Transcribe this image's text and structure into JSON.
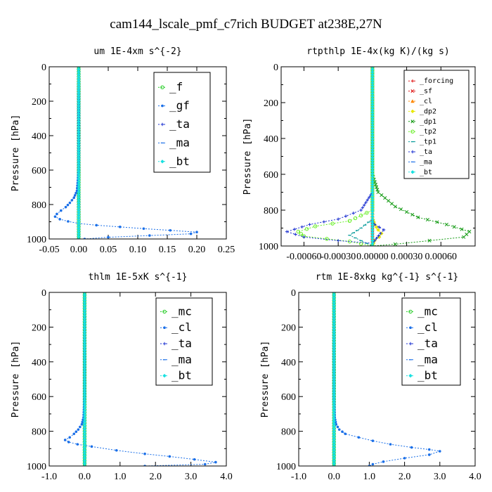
{
  "figure_title": "cam144_lscale_pmf_c7rich  BUDGET at238E,27N",
  "colors": {
    "green": "#22cc22",
    "blue": "#1a6fe8",
    "navy": "#1a2fd0",
    "cyan": "#18e0e0",
    "red": "#e01818",
    "orange": "#ff8800",
    "yellow": "#e8e800",
    "lime": "#66ee22",
    "darkgreen": "#119911",
    "teal": "#009999"
  },
  "chart_data": [
    {
      "type": "line",
      "title": "um  1E-4xm s^{-2}",
      "ylabel": "Pressure [hPa]",
      "xlabel": "",
      "xlim": [
        -0.05,
        0.25
      ],
      "ylim": [
        1000,
        0
      ],
      "xticks": [
        -0.05,
        0.0,
        0.05,
        0.1,
        0.15,
        0.2,
        0.25
      ],
      "xticklabels": [
        "-0.05",
        "0.00",
        "0.05",
        "0.10",
        "0.15",
        "0.20",
        "0.25"
      ],
      "yticks": [
        0,
        200,
        400,
        600,
        800,
        1000
      ],
      "yticklabels": [
        "0",
        "200",
        "400",
        "600",
        "800",
        "1000"
      ],
      "legend_position": "top-right",
      "legend_small": false,
      "series": [
        {
          "name": "_f",
          "color_key": "green",
          "marker": "circle",
          "points": [
            [
              0.0,
              0
            ],
            [
              0.0,
              100
            ],
            [
              0.0,
              200
            ],
            [
              0.0,
              300
            ],
            [
              0.0,
              400
            ],
            [
              0.0,
              500
            ],
            [
              0.0,
              600
            ],
            [
              0.0,
              700
            ],
            [
              0.0,
              800
            ],
            [
              0.0,
              900
            ],
            [
              0.0,
              1000
            ]
          ]
        },
        {
          "name": "_gf",
          "color_key": "blue",
          "marker": "dot",
          "points": [
            [
              0.0,
              0
            ],
            [
              0.0,
              200
            ],
            [
              0.0,
              400
            ],
            [
              0.0,
              600
            ],
            [
              -0.003,
              720
            ],
            [
              -0.008,
              760
            ],
            [
              -0.015,
              790
            ],
            [
              -0.022,
              815
            ],
            [
              -0.03,
              835
            ],
            [
              -0.037,
              855
            ],
            [
              -0.04,
              870
            ],
            [
              -0.032,
              885
            ],
            [
              -0.018,
              898
            ],
            [
              0.0,
              910
            ],
            [
              0.03,
              920
            ],
            [
              0.07,
              930
            ],
            [
              0.11,
              940
            ],
            [
              0.155,
              950
            ],
            [
              0.2,
              960
            ],
            [
              0.19,
              970
            ],
            [
              0.12,
              980
            ],
            [
              0.05,
              990
            ],
            [
              0.01,
              1000
            ]
          ]
        },
        {
          "name": "_ta",
          "color_key": "navy",
          "marker": "plus",
          "points": [
            [
              0.0,
              0
            ],
            [
              0.0,
              400
            ],
            [
              0.0,
              800
            ],
            [
              0.0,
              1000
            ]
          ]
        },
        {
          "name": "_ma",
          "color_key": "blue",
          "marker": "dash",
          "points": [
            [
              0.0,
              0
            ],
            [
              0.0,
              500
            ],
            [
              0.0,
              1000
            ]
          ]
        },
        {
          "name": "_bt",
          "color_key": "cyan",
          "marker": "diamond",
          "points": [
            [
              0.0,
              0
            ],
            [
              0.0,
              500
            ],
            [
              0.0,
              1000
            ]
          ]
        }
      ]
    },
    {
      "type": "line",
      "title": "rtpthlp  1E-4x(kg K)/(kg s)",
      "ylabel": "Pressure [hPa]",
      "xlabel": "",
      "xlim": [
        -0.0008,
        0.0009
      ],
      "ylim": [
        1000,
        0
      ],
      "xticks": [
        -0.0006,
        -0.0003,
        0.0,
        0.0003,
        0.0006
      ],
      "xticklabels": [
        "-0.00060",
        "-0.00030",
        "0.00000",
        "0.00030",
        "0.00060"
      ],
      "yticks": [
        0,
        200,
        400,
        600,
        800,
        1000
      ],
      "yticklabels": [
        "0",
        "200",
        "400",
        "600",
        "800",
        "1000"
      ],
      "legend_position": "top-right",
      "legend_small": true,
      "series": [
        {
          "name": "_forcing",
          "color_key": "red",
          "marker": "plus",
          "points": [
            [
              0.0,
              0
            ],
            [
              0.0,
              500
            ],
            [
              0.0,
              1000
            ]
          ]
        },
        {
          "name": "_sf",
          "color_key": "red",
          "marker": "cross",
          "points": [
            [
              0.0,
              0
            ],
            [
              0.0,
              500
            ],
            [
              0.0,
              1000
            ]
          ]
        },
        {
          "name": "_cl",
          "color_key": "orange",
          "marker": "triangle",
          "points": [
            [
              0.0,
              0
            ],
            [
              0.0,
              500
            ],
            [
              0.0,
              1000
            ]
          ]
        },
        {
          "name": "_dp2",
          "color_key": "yellow",
          "marker": "diamond",
          "points": [
            [
              0.0,
              0
            ],
            [
              0.0,
              840
            ],
            [
              2e-05,
              880
            ],
            [
              5e-05,
              910
            ],
            [
              8e-05,
              930
            ],
            [
              6e-05,
              950
            ],
            [
              2e-05,
              970
            ],
            [
              0.0,
              1000
            ]
          ]
        },
        {
          "name": "_dp1",
          "color_key": "darkgreen",
          "marker": "cross",
          "points": [
            [
              0.0,
              0
            ],
            [
              0.0,
              600
            ],
            [
              5e-05,
              700
            ],
            [
              0.0002,
              780
            ],
            [
              0.0004,
              840
            ],
            [
              0.00065,
              880
            ],
            [
              0.00085,
              920
            ],
            [
              0.0008,
              950
            ],
            [
              0.0005,
              970
            ],
            [
              0.0002,
              990
            ],
            [
              0.0,
              1000
            ]
          ]
        },
        {
          "name": "_tp2",
          "color_key": "lime",
          "marker": "circle",
          "points": [
            [
              0.0,
              0
            ],
            [
              0.0,
              800
            ],
            [
              -0.0002,
              860
            ],
            [
              -0.0005,
              890
            ],
            [
              -0.00065,
              920
            ],
            [
              -0.0006,
              945
            ],
            [
              -0.0004,
              960
            ],
            [
              -0.0002,
              975
            ],
            [
              0.0,
              1000
            ]
          ]
        },
        {
          "name": "_tp1",
          "color_key": "teal",
          "marker": "dash",
          "points": [
            [
              0.0,
              0
            ],
            [
              0.0,
              850
            ],
            [
              -0.0001,
              900
            ],
            [
              -0.0002,
              940
            ],
            [
              -0.0001,
              970
            ],
            [
              0.0,
              1000
            ]
          ]
        },
        {
          "name": "_ta",
          "color_key": "navy",
          "marker": "plus",
          "points": [
            [
              0.0,
              0
            ],
            [
              0.0,
              700
            ],
            [
              -0.0001,
              800
            ],
            [
              -0.0003,
              850
            ],
            [
              -0.00055,
              880
            ],
            [
              -0.00075,
              920
            ],
            [
              -0.0006,
              950
            ],
            [
              -0.0003,
              970
            ],
            [
              0.0,
              985
            ],
            [
              7e-05,
              930
            ],
            [
              0.0001,
              910
            ],
            [
              2e-05,
              880
            ],
            [
              0.0,
              860
            ],
            [
              0.0,
              1000
            ]
          ]
        },
        {
          "name": "_ma",
          "color_key": "blue",
          "marker": "dash",
          "points": [
            [
              0.0,
              0
            ],
            [
              0.0,
              1000
            ]
          ]
        },
        {
          "name": "_bt",
          "color_key": "cyan",
          "marker": "diamond",
          "points": [
            [
              0.0,
              0
            ],
            [
              0.0,
              1000
            ]
          ]
        }
      ]
    },
    {
      "type": "line",
      "title": "thlm  1E-5xK s^{-1}",
      "ylabel": "Pressure [hPa]",
      "xlabel": "",
      "xlim": [
        -1.0,
        4.0
      ],
      "ylim": [
        1000,
        0
      ],
      "xticks": [
        -1.0,
        0.0,
        1.0,
        2.0,
        3.0,
        4.0
      ],
      "xticklabels": [
        "-1.0",
        "0.0",
        "1.0",
        "2.0",
        "3.0",
        "4.0"
      ],
      "yticks": [
        0,
        200,
        400,
        600,
        800,
        1000
      ],
      "yticklabels": [
        "0",
        "200",
        "400",
        "600",
        "800",
        "1000"
      ],
      "legend_position": "top-right",
      "legend_small": false,
      "series": [
        {
          "name": "_mc",
          "color_key": "green",
          "marker": "circle",
          "points": [
            [
              0.0,
              0
            ],
            [
              0.0,
              200
            ],
            [
              0.0,
              400
            ],
            [
              0.0,
              600
            ],
            [
              0.0,
              800
            ],
            [
              0.0,
              1000
            ]
          ]
        },
        {
          "name": "_cl",
          "color_key": "blue",
          "marker": "dot",
          "points": [
            [
              0.0,
              0
            ],
            [
              0.0,
              200
            ],
            [
              0.0,
              400
            ],
            [
              0.0,
              600
            ],
            [
              -0.03,
              720
            ],
            [
              -0.08,
              760
            ],
            [
              -0.18,
              790
            ],
            [
              -0.3,
              815
            ],
            [
              -0.42,
              835
            ],
            [
              -0.55,
              850
            ],
            [
              -0.45,
              862
            ],
            [
              -0.2,
              875
            ],
            [
              0.2,
              888
            ],
            [
              0.9,
              910
            ],
            [
              1.7,
              930
            ],
            [
              2.4,
              945
            ],
            [
              3.1,
              962
            ],
            [
              3.7,
              978
            ],
            [
              3.4,
              990
            ],
            [
              1.7,
              1000
            ]
          ]
        },
        {
          "name": "_ta",
          "color_key": "navy",
          "marker": "plus",
          "points": [
            [
              0.0,
              0
            ],
            [
              0.0,
              500
            ],
            [
              0.0,
              1000
            ]
          ]
        },
        {
          "name": "_ma",
          "color_key": "blue",
          "marker": "dash",
          "points": [
            [
              0.0,
              0
            ],
            [
              0.0,
              500
            ],
            [
              0.0,
              1000
            ]
          ]
        },
        {
          "name": "_bt",
          "color_key": "cyan",
          "marker": "diamond",
          "points": [
            [
              0.0,
              0
            ],
            [
              0.0,
              500
            ],
            [
              0.0,
              1000
            ]
          ]
        }
      ]
    },
    {
      "type": "line",
      "title": "rtm  1E-8xkg kg^{-1} s^{-1}",
      "ylabel": "Pressure [hPa]",
      "xlabel": "",
      "xlim": [
        -1.0,
        4.0
      ],
      "ylim": [
        1000,
        0
      ],
      "xticks": [
        -1.0,
        0.0,
        1.0,
        2.0,
        3.0,
        4.0
      ],
      "xticklabels": [
        "-1.0",
        "0.0",
        "1.0",
        "2.0",
        "3.0",
        "4.0"
      ],
      "yticks": [
        0,
        200,
        400,
        600,
        800,
        1000
      ],
      "yticklabels": [
        "0",
        "200",
        "400",
        "600",
        "800",
        "1000"
      ],
      "legend_position": "top-right",
      "legend_small": false,
      "series": [
        {
          "name": "_mc",
          "color_key": "green",
          "marker": "circle",
          "points": [
            [
              0.0,
              0
            ],
            [
              0.0,
              200
            ],
            [
              0.0,
              400
            ],
            [
              0.0,
              600
            ],
            [
              0.0,
              800
            ],
            [
              0.0,
              1000
            ]
          ]
        },
        {
          "name": "_cl",
          "color_key": "blue",
          "marker": "dot",
          "points": [
            [
              0.0,
              0
            ],
            [
              0.0,
              200
            ],
            [
              0.0,
              400
            ],
            [
              0.0,
              600
            ],
            [
              0.02,
              720
            ],
            [
              0.06,
              760
            ],
            [
              0.15,
              790
            ],
            [
              0.32,
              815
            ],
            [
              0.7,
              835
            ],
            [
              1.1,
              855
            ],
            [
              1.6,
              875
            ],
            [
              2.2,
              893
            ],
            [
              2.7,
              905
            ],
            [
              3.0,
              915
            ],
            [
              2.7,
              935
            ],
            [
              2.0,
              955
            ],
            [
              1.4,
              975
            ],
            [
              1.1,
              990
            ],
            [
              1.0,
              1000
            ]
          ]
        },
        {
          "name": "_ta",
          "color_key": "navy",
          "marker": "plus",
          "points": [
            [
              0.0,
              0
            ],
            [
              0.0,
              500
            ],
            [
              0.0,
              1000
            ]
          ]
        },
        {
          "name": "_ma",
          "color_key": "blue",
          "marker": "dash",
          "points": [
            [
              0.0,
              0
            ],
            [
              0.0,
              500
            ],
            [
              0.0,
              1000
            ]
          ]
        },
        {
          "name": "_bt",
          "color_key": "cyan",
          "marker": "diamond",
          "points": [
            [
              0.0,
              0
            ],
            [
              0.0,
              500
            ],
            [
              0.0,
              1000
            ]
          ]
        }
      ]
    }
  ]
}
